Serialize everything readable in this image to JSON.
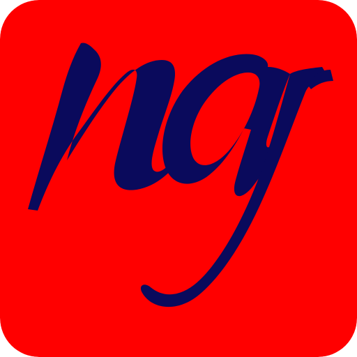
{
  "icon": {
    "name": "ng-logo-icon",
    "logo_text": "ng",
    "colors": {
      "background": "#ff0000",
      "letters": "#0a0a5c"
    }
  }
}
